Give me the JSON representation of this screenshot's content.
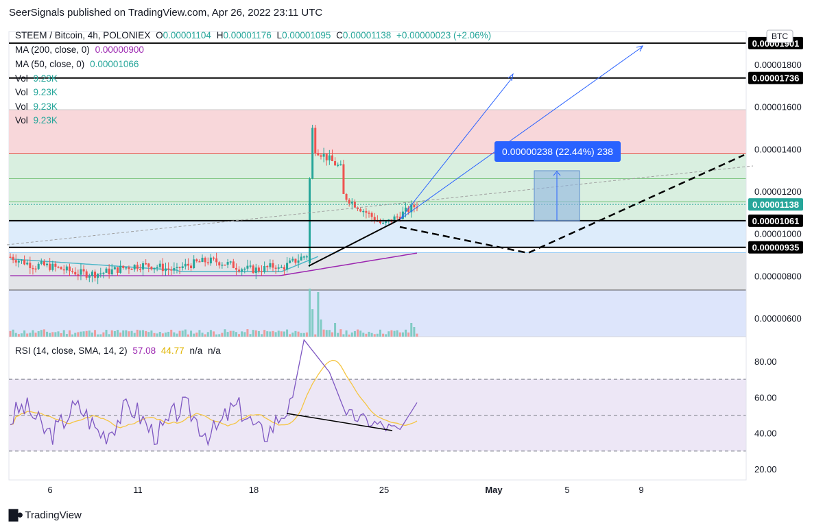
{
  "header": {
    "published": "SeerSignals published on TradingView.com, Apr 26, 2022 23:11 UTC"
  },
  "footer": {
    "brand": "TradingView"
  },
  "legend": {
    "symbol": "STEEM / Bitcoin, 4h, POLONIEX",
    "o_label": "O",
    "o": "0.00001104",
    "h_label": "H",
    "h": "0.00001176",
    "l_label": "L",
    "l": "0.00001095",
    "c_label": "C",
    "c": "0.00001138",
    "change": "+0.00000023 (+2.06%)",
    "ma200_label": "MA (200, close, 0)",
    "ma200": "0.00000900",
    "ma50_label": "MA (50, close, 0)",
    "ma50": "0.00001066",
    "vol_label": "Vol",
    "vol": "9.23K",
    "rsi_label": "RSI (14, close, SMA, 14, 2)",
    "rsi": "57.08",
    "rsi_sma": "44.77",
    "na1": "n/a",
    "na2": "n/a"
  },
  "chart_data": [
    {
      "type": "candlestick",
      "currency_badge": "BTC",
      "y_ticks": [
        "0.00001800",
        "0.00001600",
        "0.00001400",
        "0.00001200",
        "0.00001000",
        "0.00000800",
        "0.00000600"
      ],
      "y_tick_values": [
        1.8e-05,
        1.6e-05,
        1.4e-05,
        1.2e-05,
        1e-05,
        8e-06,
        6e-06
      ],
      "x_ticks": [
        "6",
        "11",
        "18",
        "25",
        "May",
        "5",
        "9"
      ],
      "price_labels": [
        {
          "text": "0.00001901",
          "value": 1.901e-05,
          "style": "black"
        },
        {
          "text": "0.00001736",
          "value": 1.736e-05,
          "style": "black"
        },
        {
          "text": "0.00001138",
          "value": 1.138e-05,
          "style": "teal"
        },
        {
          "text": "0.00001061",
          "value": 1.061e-05,
          "style": "black"
        },
        {
          "text": "0.00000935",
          "value": 9.35e-06,
          "style": "black"
        }
      ],
      "measure_label": "0.00000238 (22.44%) 238",
      "colors": {
        "up": "#26a69a",
        "down": "#ef5350",
        "ma200": "#9c27b0",
        "ma50": "#4db6c8",
        "arrows": "#2962ff"
      }
    },
    {
      "type": "line",
      "name": "RSI",
      "y_ticks": [
        "80.00",
        "60.00",
        "40.00",
        "20.00"
      ],
      "y_tick_values": [
        80,
        60,
        40,
        20
      ],
      "band": [
        30,
        70
      ],
      "mid": 50,
      "ylim": [
        15,
        95
      ]
    }
  ]
}
